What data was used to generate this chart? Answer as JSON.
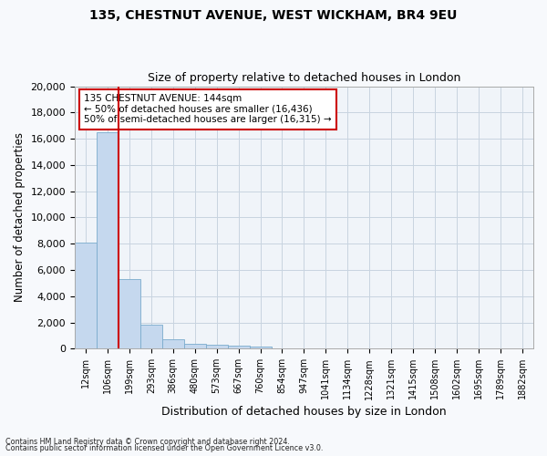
{
  "title1": "135, CHESTNUT AVENUE, WEST WICKHAM, BR4 9EU",
  "title2": "Size of property relative to detached houses in London",
  "xlabel": "Distribution of detached houses by size in London",
  "ylabel": "Number of detached properties",
  "bar_labels": [
    "12sqm",
    "106sqm",
    "199sqm",
    "293sqm",
    "386sqm",
    "480sqm",
    "573sqm",
    "667sqm",
    "760sqm",
    "854sqm",
    "947sqm",
    "1041sqm",
    "1134sqm",
    "1228sqm",
    "1321sqm",
    "1415sqm",
    "1508sqm",
    "1602sqm",
    "1695sqm",
    "1789sqm",
    "1882sqm"
  ],
  "bar_values": [
    8100,
    16500,
    5300,
    1850,
    700,
    350,
    275,
    230,
    190,
    0,
    0,
    0,
    0,
    0,
    0,
    0,
    0,
    0,
    0,
    0,
    0
  ],
  "bar_color": "#c5d8ee",
  "bar_edge_color": "#7aabcc",
  "grid_color": "#c8d4e0",
  "annotation_text_line1": "135 CHESTNUT AVENUE: 144sqm",
  "annotation_text_line2": "← 50% of detached houses are smaller (16,436)",
  "annotation_text_line3": "50% of semi-detached houses are larger (16,315) →",
  "annotation_box_edge_color": "#cc0000",
  "vline_color": "#cc0000",
  "vline_x": 1.5,
  "ylim_min": 0,
  "ylim_max": 20000,
  "yticks": [
    0,
    2000,
    4000,
    6000,
    8000,
    10000,
    12000,
    14000,
    16000,
    18000,
    20000
  ],
  "footer1": "Contains HM Land Registry data © Crown copyright and database right 2024.",
  "footer2": "Contains public sector information licensed under the Open Government Licence v3.0.",
  "fig_bg_color": "#f7f9fc",
  "plot_bg_color": "#f0f4f9"
}
